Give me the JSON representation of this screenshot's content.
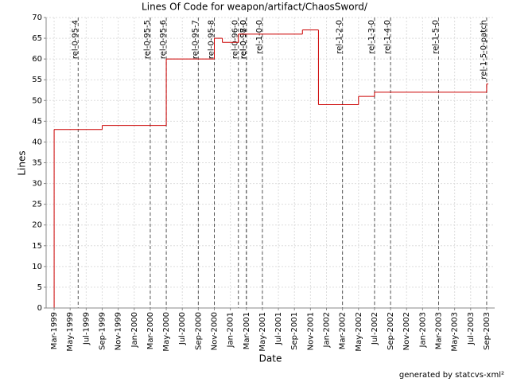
{
  "chart_data": {
    "type": "line",
    "step": "post",
    "title": "Lines Of Code for weapon/artifact/ChaosSword/",
    "x_label": "Date",
    "y_label": "Lines",
    "footer": "generated by statcvs-xml²",
    "color": "#cc0000",
    "grid": true,
    "x": [
      "1999-03",
      "1999-03",
      "1999-09",
      "2000-05",
      "2000-11",
      "2000-12",
      "2001-02",
      "2001-10",
      "2001-12",
      "2002-05",
      "2002-07",
      "2003-09"
    ],
    "values": [
      0,
      43,
      44,
      60,
      65,
      64,
      66,
      67,
      49,
      51,
      52,
      54
    ],
    "xlim": [
      "1999-02",
      "2003-10"
    ],
    "xticks": [
      {
        "value": "1999-03",
        "label": "Mar-1999"
      },
      {
        "value": "1999-05",
        "label": "May-1999"
      },
      {
        "value": "1999-07",
        "label": "Jul-1999"
      },
      {
        "value": "1999-09",
        "label": "Sep-1999"
      },
      {
        "value": "1999-11",
        "label": "Nov-1999"
      },
      {
        "value": "2000-01",
        "label": "Jan-2000"
      },
      {
        "value": "2000-03",
        "label": "Mar-2000"
      },
      {
        "value": "2000-05",
        "label": "May-2000"
      },
      {
        "value": "2000-07",
        "label": "Jul-2000"
      },
      {
        "value": "2000-09",
        "label": "Sep-2000"
      },
      {
        "value": "2000-11",
        "label": "Nov-2000"
      },
      {
        "value": "2001-01",
        "label": "Jan-2001"
      },
      {
        "value": "2001-03",
        "label": "Mar-2001"
      },
      {
        "value": "2001-05",
        "label": "May-2001"
      },
      {
        "value": "2001-07",
        "label": "Jul-2001"
      },
      {
        "value": "2001-09",
        "label": "Sep-2001"
      },
      {
        "value": "2001-11",
        "label": "Nov-2001"
      },
      {
        "value": "2002-01",
        "label": "Jan-2002"
      },
      {
        "value": "2002-03",
        "label": "Mar-2002"
      },
      {
        "value": "2002-05",
        "label": "May-2002"
      },
      {
        "value": "2002-07",
        "label": "Jul-2002"
      },
      {
        "value": "2002-09",
        "label": "Sep-2002"
      },
      {
        "value": "2002-11",
        "label": "Nov-2002"
      },
      {
        "value": "2003-01",
        "label": "Jan-2003"
      },
      {
        "value": "2003-03",
        "label": "Mar-2003"
      },
      {
        "value": "2003-05",
        "label": "May-2003"
      },
      {
        "value": "2003-07",
        "label": "Jul-2003"
      },
      {
        "value": "2003-09",
        "label": "Sep-2003"
      }
    ],
    "ylim": [
      0,
      70
    ],
    "yticks": [
      0,
      5,
      10,
      15,
      20,
      25,
      30,
      35,
      40,
      45,
      50,
      55,
      60,
      65,
      70
    ],
    "markers": [
      {
        "label": "rel-0-95-4",
        "x": "1999-06"
      },
      {
        "label": "rel-0-95-5",
        "x": "2000-03"
      },
      {
        "label": "rel-0-95-6",
        "x": "2000-05"
      },
      {
        "label": "rel-0-95-7",
        "x": "2000-09"
      },
      {
        "label": "rel-0-95-8",
        "x": "2000-11"
      },
      {
        "label": "rel-0-96-0",
        "x": "2001-02"
      },
      {
        "label": "rel-0-97-0",
        "x": "2001-03"
      },
      {
        "label": "rel-0-98-0",
        "x": "2001-03"
      },
      {
        "label": "rel-1-0-0",
        "x": "2001-05"
      },
      {
        "label": "rel-1-2-0",
        "x": "2002-03"
      },
      {
        "label": "rel-1-3-0",
        "x": "2002-07"
      },
      {
        "label": "rel-1-4-0",
        "x": "2002-09"
      },
      {
        "label": "rel-1-5-0",
        "x": "2003-03"
      },
      {
        "label": "rel-1-5-0-patch",
        "x": "2003-09"
      }
    ]
  }
}
